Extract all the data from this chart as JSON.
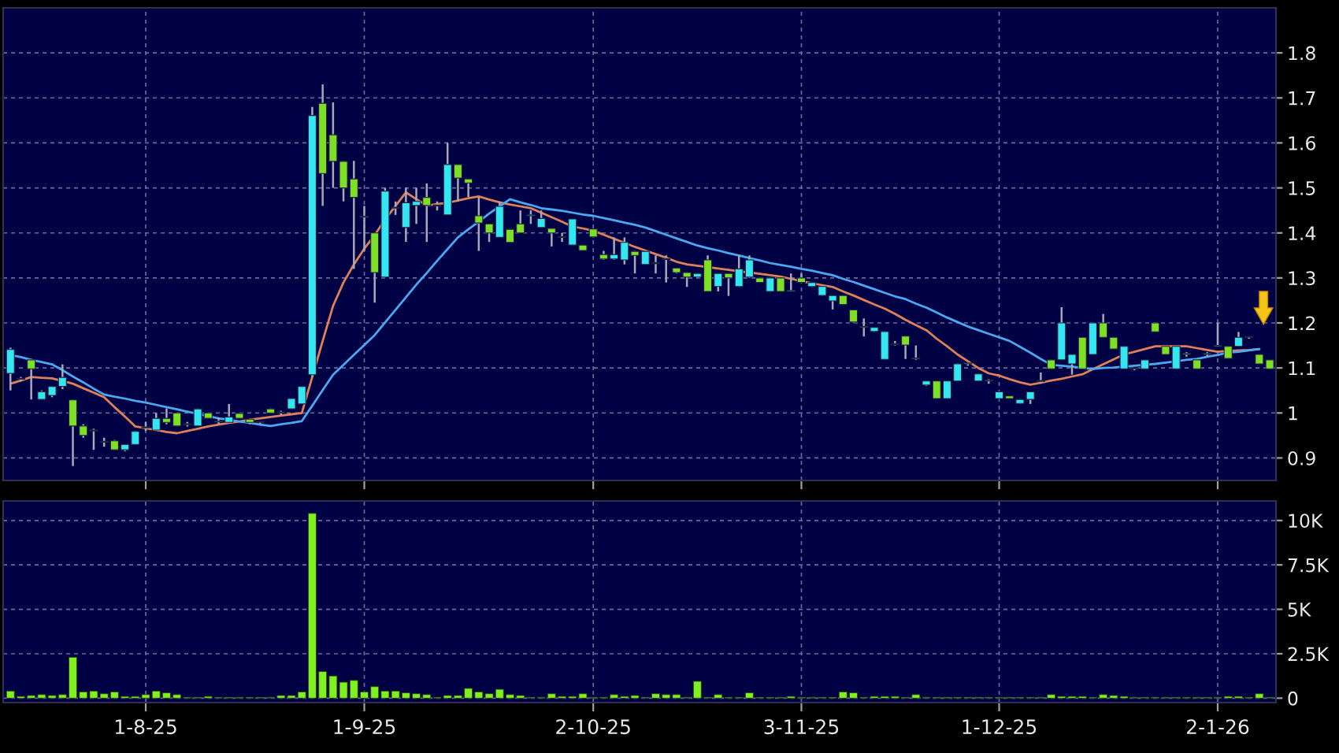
{
  "chart_data": [
    {
      "type": "candlestick",
      "ylim": [
        0.85,
        1.9
      ],
      "yticks": [
        0.9,
        1,
        1.1,
        1.2,
        1.3,
        1.4,
        1.5,
        1.6,
        1.7,
        1.8
      ],
      "grid": true,
      "tick_labels": "y",
      "categories": [
        null,
        null,
        null,
        null,
        null,
        null,
        null,
        null,
        null,
        null,
        null,
        null,
        null,
        null,
        null,
        null,
        null,
        null,
        null,
        null,
        null,
        null,
        null,
        null,
        null,
        null,
        null,
        null,
        null,
        null,
        null,
        null,
        null,
        null,
        null,
        null,
        null,
        null,
        null,
        null,
        null,
        null,
        null,
        null,
        null,
        null,
        null,
        null,
        null,
        null,
        null,
        null,
        null,
        null,
        null,
        null,
        null,
        null,
        null,
        null,
        null,
        null,
        null,
        null,
        null,
        null,
        null,
        null,
        null,
        null,
        null,
        null,
        null,
        null,
        null,
        null,
        null,
        null,
        null,
        null,
        null,
        null,
        null,
        null,
        null,
        null,
        null,
        null,
        null,
        null,
        null,
        null,
        null,
        null,
        null,
        null,
        null,
        null,
        null,
        null,
        null,
        null,
        null,
        null,
        null,
        null,
        null,
        null,
        null,
        null,
        null,
        null,
        null,
        null,
        null,
        null,
        null,
        null,
        null,
        null,
        null,
        null
      ],
      "series": [
        {
          "type": "candlestick",
          "ohlc": [
            [
              1.088,
              1.145,
              1.05,
              1.141
            ],
            [
              1.075,
              1.08,
              1.07,
              1.075
            ],
            [
              1.118,
              1.12,
              1.03,
              1.098
            ],
            [
              1.03,
              1.05,
              1.03,
              1.047
            ],
            [
              1.039,
              1.06,
              1.035,
              1.059
            ],
            [
              1.059,
              1.108,
              1.053,
              1.079
            ],
            [
              1.029,
              1.03,
              0.882,
              0.971
            ],
            [
              0.971,
              0.975,
              0.945,
              0.95
            ],
            [
              0.96,
              0.965,
              0.918,
              0.96
            ],
            [
              0.935,
              0.945,
              0.925,
              0.935
            ],
            [
              0.938,
              0.94,
              0.918,
              0.918
            ],
            [
              0.918,
              0.93,
              0.915,
              0.93
            ],
            [
              0.93,
              0.96,
              0.93,
              0.959
            ],
            [
              0.967,
              0.98,
              0.96,
              0.967
            ],
            [
              0.962,
              1.0,
              0.962,
              0.988
            ],
            [
              0.988,
              1.01,
              0.975,
              0.979
            ],
            [
              1.0,
              1.0,
              0.971,
              0.971
            ],
            [
              0.974,
              0.98,
              0.97,
              0.974
            ],
            [
              0.971,
              1.01,
              0.971,
              1.009
            ],
            [
              1.0,
              1.0,
              0.988,
              0.988
            ],
            [
              0.98,
              0.99,
              0.975,
              0.98
            ],
            [
              0.979,
              1.02,
              0.979,
              0.991
            ],
            [
              0.999,
              1.0,
              0.988,
              0.988
            ],
            [
              0.986,
              0.986,
              0.975,
              0.979
            ],
            [
              0.979,
              0.98,
              0.975,
              0.979
            ],
            [
              1.009,
              1.01,
              1.0,
              1.0
            ],
            [
              1.0,
              1.005,
              0.995,
              1.0
            ],
            [
              1.009,
              1.032,
              1.009,
              1.032
            ],
            [
              1.02,
              1.06,
              1.02,
              1.059
            ],
            [
              1.085,
              1.68,
              1.08,
              1.661
            ],
            [
              1.688,
              1.73,
              1.46,
              1.532
            ],
            [
              1.618,
              1.69,
              1.5,
              1.559
            ],
            [
              1.559,
              1.56,
              1.47,
              1.5
            ],
            [
              1.52,
              1.56,
              1.32,
              1.479
            ],
            [
              1.435,
              1.46,
              1.36,
              1.435
            ],
            [
              1.4,
              1.4,
              1.245,
              1.312
            ],
            [
              1.302,
              1.5,
              1.302,
              1.493
            ],
            [
              1.455,
              1.47,
              1.44,
              1.455
            ],
            [
              1.412,
              1.5,
              1.38,
              1.467
            ],
            [
              1.461,
              1.5,
              1.42,
              1.47
            ],
            [
              1.479,
              1.51,
              1.38,
              1.461
            ],
            [
              1.46,
              1.47,
              1.45,
              1.46
            ],
            [
              1.44,
              1.6,
              1.44,
              1.552
            ],
            [
              1.552,
              1.552,
              1.47,
              1.522
            ],
            [
              1.52,
              1.52,
              1.48,
              1.511
            ],
            [
              1.438,
              1.48,
              1.36,
              1.422
            ],
            [
              1.42,
              1.42,
              1.38,
              1.4
            ],
            [
              1.39,
              1.47,
              1.39,
              1.459
            ],
            [
              1.408,
              1.408,
              1.379,
              1.379
            ],
            [
              1.42,
              1.45,
              1.4,
              1.4
            ],
            [
              1.438,
              1.45,
              1.42,
              1.438
            ],
            [
              1.412,
              1.45,
              1.412,
              1.432
            ],
            [
              1.41,
              1.41,
              1.37,
              1.4
            ],
            [
              1.39,
              1.4,
              1.38,
              1.39
            ],
            [
              1.373,
              1.431,
              1.373,
              1.431
            ],
            [
              1.373,
              1.373,
              1.361,
              1.361
            ],
            [
              1.409,
              1.409,
              1.39,
              1.391
            ],
            [
              1.352,
              1.36,
              1.34,
              1.342
            ],
            [
              1.342,
              1.39,
              1.34,
              1.352
            ],
            [
              1.34,
              1.39,
              1.33,
              1.379
            ],
            [
              1.359,
              1.36,
              1.31,
              1.35
            ],
            [
              1.33,
              1.36,
              1.33,
              1.359
            ],
            [
              1.332,
              1.35,
              1.31,
              1.332
            ],
            [
              1.341,
              1.35,
              1.29,
              1.341
            ],
            [
              1.322,
              1.322,
              1.31,
              1.312
            ],
            [
              1.312,
              1.312,
              1.28,
              1.302
            ],
            [
              1.302,
              1.31,
              1.3,
              1.31
            ],
            [
              1.34,
              1.35,
              1.27,
              1.27
            ],
            [
              1.281,
              1.31,
              1.27,
              1.31
            ],
            [
              1.31,
              1.31,
              1.26,
              1.3
            ],
            [
              1.281,
              1.35,
              1.28,
              1.32
            ],
            [
              1.302,
              1.35,
              1.3,
              1.34
            ],
            [
              1.3,
              1.3,
              1.29,
              1.29
            ],
            [
              1.27,
              1.3,
              1.27,
              1.3
            ],
            [
              1.3,
              1.3,
              1.27,
              1.27
            ],
            [
              1.27,
              1.31,
              1.27,
              1.27
            ],
            [
              1.3,
              1.31,
              1.29,
              1.29
            ],
            [
              1.281,
              1.29,
              1.28,
              1.29
            ],
            [
              1.261,
              1.281,
              1.26,
              1.281
            ],
            [
              1.249,
              1.261,
              1.23,
              1.261
            ],
            [
              1.261,
              1.261,
              1.24,
              1.241
            ],
            [
              1.229,
              1.229,
              1.2,
              1.202
            ],
            [
              1.19,
              1.21,
              1.17,
              1.19
            ],
            [
              1.181,
              1.19,
              1.18,
              1.19
            ],
            [
              1.119,
              1.181,
              1.119,
              1.181
            ],
            [
              1.152,
              1.16,
              1.15,
              1.152
            ],
            [
              1.171,
              1.171,
              1.12,
              1.151
            ],
            [
              1.12,
              1.15,
              1.118,
              1.12
            ],
            [
              1.062,
              1.071,
              1.06,
              1.071
            ],
            [
              1.071,
              1.071,
              1.032,
              1.032
            ],
            [
              1.032,
              1.071,
              1.032,
              1.071
            ],
            [
              1.071,
              1.11,
              1.071,
              1.109
            ],
            [
              1.109,
              1.11,
              1.105,
              1.109
            ],
            [
              1.071,
              1.087,
              1.071,
              1.087
            ],
            [
              1.071,
              1.075,
              1.065,
              1.071
            ],
            [
              1.032,
              1.047,
              1.032,
              1.047
            ],
            [
              1.038,
              1.038,
              1.032,
              1.032
            ],
            [
              1.021,
              1.03,
              1.02,
              1.03
            ],
            [
              1.03,
              1.047,
              1.02,
              1.047
            ],
            [
              1.07,
              1.09,
              1.065,
              1.07
            ],
            [
              1.118,
              1.118,
              1.098,
              1.098
            ],
            [
              1.118,
              1.235,
              1.118,
              1.2
            ],
            [
              1.109,
              1.13,
              1.085,
              1.13
            ],
            [
              1.168,
              1.168,
              1.098,
              1.098
            ],
            [
              1.13,
              1.2,
              1.13,
              1.2
            ],
            [
              1.2,
              1.22,
              1.168,
              1.168
            ],
            [
              1.168,
              1.168,
              1.142,
              1.142
            ],
            [
              1.098,
              1.148,
              1.098,
              1.148
            ],
            [
              1.098,
              1.1,
              1.095,
              1.098
            ],
            [
              1.098,
              1.118,
              1.098,
              1.118
            ],
            [
              1.2,
              1.2,
              1.18,
              1.18
            ],
            [
              1.148,
              1.148,
              1.13,
              1.13
            ],
            [
              1.098,
              1.148,
              1.098,
              1.148
            ],
            [
              1.13,
              1.135,
              1.125,
              1.13
            ],
            [
              1.118,
              1.118,
              1.098,
              1.098
            ],
            [
              1.13,
              1.135,
              1.125,
              1.13
            ],
            [
              1.148,
              1.2,
              1.148,
              1.148
            ],
            [
              1.148,
              1.148,
              1.121,
              1.121
            ],
            [
              1.148,
              1.18,
              1.148,
              1.168
            ],
            [
              1.168,
              1.17,
              1.165,
              1.168
            ],
            [
              1.13,
              1.13,
              1.109,
              1.109
            ],
            [
              1.118,
              1.118,
              1.098,
              1.098
            ]
          ],
          "colors": [
            "#33e6f2",
            "#33e6f2",
            "#7ee026",
            "#33e6f2",
            "#33e6f2",
            "#33e6f2",
            "#7ee026",
            "#7ee026",
            "#33e6f2",
            "#33e6f2",
            "#7ee026",
            "#33e6f2",
            "#33e6f2",
            "#33e6f2",
            "#33e6f2",
            "#7ee026",
            "#7ee026",
            "#33e6f2",
            "#33e6f2",
            "#7ee026",
            "#33e6f2",
            "#33e6f2",
            "#7ee026",
            "#7ee026",
            "#33e6f2",
            "#7ee026",
            "#33e6f2",
            "#33e6f2",
            "#33e6f2",
            "#33e6f2",
            "#7ee026",
            "#7ee026",
            "#7ee026",
            "#7ee026",
            "#33e6f2",
            "#7ee026",
            "#33e6f2",
            "#33e6f2",
            "#33e6f2",
            "#33e6f2",
            "#7ee026",
            "#33e6f2",
            "#33e6f2",
            "#7ee026",
            "#7ee026",
            "#7ee026",
            "#7ee026",
            "#33e6f2",
            "#7ee026",
            "#7ee026",
            "#33e6f2",
            "#33e6f2",
            "#7ee026",
            "#33e6f2",
            "#33e6f2",
            "#7ee026",
            "#7ee026",
            "#7ee026",
            "#33e6f2",
            "#33e6f2",
            "#7ee026",
            "#33e6f2",
            "#33e6f2",
            "#33e6f2",
            "#7ee026",
            "#7ee026",
            "#33e6f2",
            "#7ee026",
            "#33e6f2",
            "#7ee026",
            "#33e6f2",
            "#33e6f2",
            "#7ee026",
            "#33e6f2",
            "#7ee026",
            "#33e6f2",
            "#7ee026",
            "#33e6f2",
            "#33e6f2",
            "#33e6f2",
            "#7ee026",
            "#7ee026",
            "#33e6f2",
            "#33e6f2",
            "#33e6f2",
            "#33e6f2",
            "#7ee026",
            "#33e6f2",
            "#33e6f2",
            "#7ee026",
            "#33e6f2",
            "#33e6f2",
            "#33e6f2",
            "#33e6f2",
            "#33e6f2",
            "#33e6f2",
            "#7ee026",
            "#33e6f2",
            "#33e6f2",
            "#33e6f2",
            "#7ee026",
            "#33e6f2",
            "#33e6f2",
            "#7ee026",
            "#33e6f2",
            "#7ee026",
            "#7ee026",
            "#33e6f2",
            "#33e6f2",
            "#33e6f2",
            "#7ee026",
            "#7ee026",
            "#33e6f2",
            "#33e6f2",
            "#7ee026",
            "#33e6f2",
            "#33e6f2",
            "#7ee026",
            "#33e6f2",
            "#33e6f2",
            "#7ee026",
            "#7ee026"
          ]
        },
        {
          "type": "line",
          "color": "#e0805a",
          "values": [
            1.065,
            1.072,
            1.08,
            1.078,
            1.077,
            1.071,
            1.065,
            1.055,
            1.045,
            1.035,
            1.013,
            0.992,
            0.97,
            0.966,
            0.962,
            0.958,
            0.955,
            0.96,
            0.965,
            0.97,
            0.974,
            0.978,
            0.981,
            0.985,
            0.988,
            0.991,
            0.994,
            0.997,
            1.0,
            1.08,
            1.16,
            1.238,
            1.29,
            1.33,
            1.365,
            1.395,
            1.43,
            1.46,
            1.49,
            1.475,
            1.461,
            1.464,
            1.467,
            1.472,
            1.477,
            1.481,
            1.474,
            1.468,
            1.463,
            1.459,
            1.455,
            1.445,
            1.435,
            1.425,
            1.414,
            1.41,
            1.405,
            1.396,
            1.387,
            1.378,
            1.369,
            1.361,
            1.353,
            1.345,
            1.336,
            1.33,
            1.327,
            1.324,
            1.321,
            1.318,
            1.315,
            1.312,
            1.309,
            1.306,
            1.303,
            1.298,
            1.293,
            1.288,
            1.284,
            1.28,
            1.27,
            1.261,
            1.251,
            1.241,
            1.232,
            1.22,
            1.207,
            1.195,
            1.184,
            1.165,
            1.148,
            1.13,
            1.115,
            1.1,
            1.088,
            1.083,
            1.075,
            1.068,
            1.063,
            1.067,
            1.072,
            1.076,
            1.081,
            1.086,
            1.097,
            1.108,
            1.119,
            1.13,
            1.136,
            1.142,
            1.148,
            1.148,
            1.148,
            1.148,
            1.144,
            1.14,
            1.136,
            1.138,
            1.139,
            1.14,
            1.142,
            null
          ]
        },
        {
          "type": "line",
          "color": "#4aa8f0",
          "values": [
            1.129,
            1.124,
            1.118,
            1.113,
            1.108,
            1.095,
            1.081,
            1.068,
            1.054,
            1.041,
            1.036,
            1.032,
            1.027,
            1.023,
            1.018,
            1.013,
            1.008,
            1.003,
            0.998,
            0.993,
            0.988,
            0.985,
            0.981,
            0.978,
            0.974,
            0.971,
            0.975,
            0.978,
            0.982,
            1.016,
            1.051,
            1.085,
            1.107,
            1.129,
            1.151,
            1.173,
            1.201,
            1.229,
            1.257,
            1.285,
            1.311,
            1.338,
            1.364,
            1.39,
            1.408,
            1.425,
            1.443,
            1.459,
            1.475,
            1.468,
            1.462,
            1.455,
            1.452,
            1.449,
            1.445,
            1.441,
            1.438,
            1.433,
            1.428,
            1.423,
            1.418,
            1.412,
            1.404,
            1.396,
            1.388,
            1.38,
            1.372,
            1.366,
            1.361,
            1.355,
            1.35,
            1.344,
            1.339,
            1.333,
            1.329,
            1.325,
            1.32,
            1.316,
            1.311,
            1.306,
            1.298,
            1.291,
            1.283,
            1.275,
            1.267,
            1.259,
            1.253,
            1.243,
            1.234,
            1.223,
            1.212,
            1.202,
            1.192,
            1.184,
            1.176,
            1.168,
            1.16,
            1.147,
            1.134,
            1.12,
            1.107,
            1.105,
            1.103,
            1.1,
            1.098,
            1.1,
            1.101,
            1.103,
            1.105,
            1.107,
            1.109,
            1.112,
            1.115,
            1.118,
            1.12,
            1.125,
            1.129,
            1.134,
            1.136,
            1.139,
            1.142,
            null
          ]
        }
      ]
    },
    {
      "type": "bar",
      "color": "#80f020",
      "ylim": [
        -250,
        11100
      ],
      "yticks": [
        0,
        {
          "value": 2500,
          "label": "2.5K"
        },
        {
          "value": 5000,
          "label": "5K"
        },
        {
          "value": 7500,
          "label": "7.5K"
        },
        {
          "value": 10000,
          "label": "10K"
        }
      ],
      "grid": true,
      "categories": [
        null,
        null,
        null,
        null,
        null,
        null,
        null,
        null,
        null,
        null,
        null,
        null,
        null,
        "1-8-25",
        null,
        null,
        null,
        null,
        null,
        null,
        null,
        null,
        null,
        null,
        null,
        null,
        null,
        null,
        null,
        null,
        null,
        null,
        null,
        null,
        "1-9-25",
        null,
        null,
        null,
        null,
        null,
        null,
        null,
        null,
        null,
        null,
        null,
        null,
        null,
        null,
        null,
        null,
        null,
        null,
        null,
        null,
        null,
        "2-10-25",
        null,
        null,
        null,
        null,
        null,
        null,
        null,
        null,
        null,
        null,
        null,
        null,
        null,
        null,
        null,
        null,
        null,
        null,
        null,
        "3-11-25",
        null,
        null,
        null,
        null,
        null,
        null,
        null,
        null,
        null,
        null,
        null,
        null,
        null,
        null,
        null,
        null,
        null,
        null,
        "1-12-25",
        null,
        null,
        null,
        null,
        null,
        null,
        null,
        null,
        null,
        null,
        null,
        null,
        null,
        null,
        null,
        null,
        null,
        null,
        null,
        null,
        "2-1-26",
        null,
        null,
        null,
        null,
        null
      ],
      "values": [
        400,
        100,
        150,
        200,
        150,
        200,
        2300,
        350,
        400,
        250,
        350,
        100,
        100,
        200,
        400,
        300,
        200,
        50,
        50,
        100,
        50,
        50,
        50,
        50,
        50,
        50,
        150,
        150,
        350,
        10400,
        1500,
        1250,
        900,
        1000,
        350,
        650,
        400,
        400,
        300,
        250,
        200,
        50,
        150,
        150,
        550,
        350,
        250,
        500,
        200,
        150,
        50,
        50,
        250,
        100,
        100,
        250,
        50,
        50,
        200,
        100,
        150,
        50,
        250,
        200,
        200,
        50,
        950,
        50,
        200,
        50,
        50,
        300,
        50,
        50,
        50,
        100,
        50,
        50,
        50,
        50,
        350,
        300,
        50,
        100,
        100,
        100,
        50,
        200,
        50,
        50,
        50,
        50,
        50,
        50,
        50,
        50,
        50,
        50,
        50,
        50,
        200,
        100,
        100,
        100,
        50,
        200,
        150,
        100,
        50,
        50,
        50,
        50,
        50,
        50,
        50,
        50,
        50,
        100,
        100,
        50,
        250,
        50
      ]
    }
  ]
}
